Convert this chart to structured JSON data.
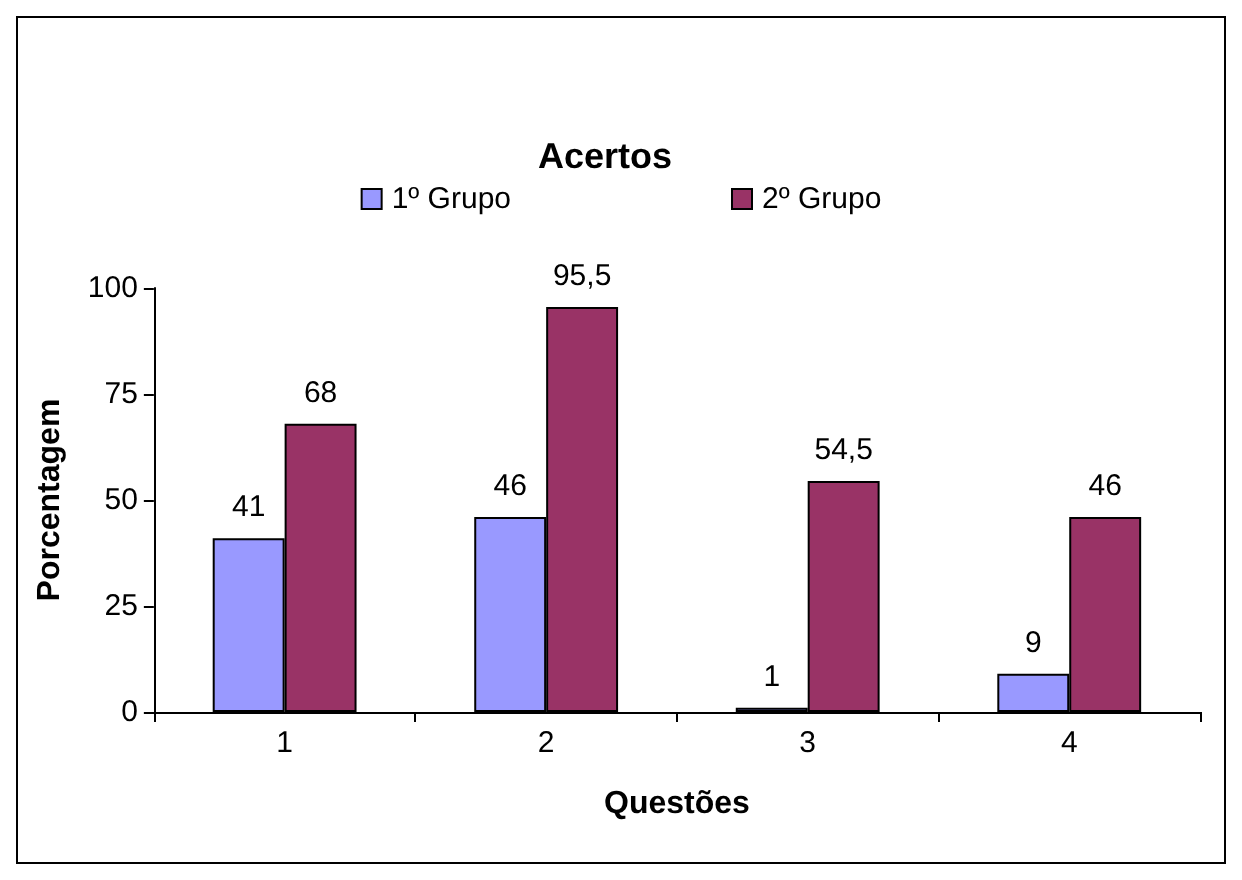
{
  "chart_data": {
    "type": "bar",
    "title": "Acertos",
    "xlabel": "Questões",
    "ylabel": "Porcentagem",
    "categories": [
      "1",
      "2",
      "3",
      "4"
    ],
    "series": [
      {
        "name": "1º Grupo",
        "color": "#9999ff",
        "values": [
          41,
          46,
          1,
          9
        ],
        "value_labels": [
          "41",
          "46",
          "1",
          "9"
        ]
      },
      {
        "name": "2º Grupo",
        "color": "#993366",
        "values": [
          68,
          95.5,
          54.5,
          46
        ],
        "value_labels": [
          "68",
          "95,5",
          "54,5",
          "46"
        ]
      }
    ],
    "ylim": [
      0,
      100
    ],
    "yticks": [
      0,
      25,
      50,
      75,
      100
    ],
    "grid": false,
    "legend": "top"
  }
}
